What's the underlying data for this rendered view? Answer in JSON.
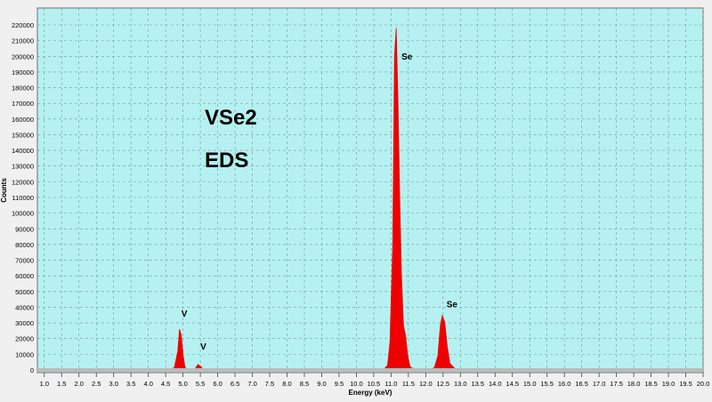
{
  "chart_data": {
    "type": "area",
    "title": "",
    "xlabel": "Energy (keV)",
    "ylabel": "Counts",
    "xlim": [
      0.8,
      20.0
    ],
    "ylim": [
      0,
      220000
    ],
    "x_ticks": [
      "1.0",
      "1.5",
      "2.0",
      "2.5",
      "3.0",
      "3.5",
      "4.0",
      "4.5",
      "5.0",
      "5.5",
      "6.0",
      "6.5",
      "7.0",
      "7.5",
      "8.0",
      "8.5",
      "9.0",
      "9.5",
      "10.0",
      "10.5",
      "11.0",
      "11.5",
      "12.0",
      "12.5",
      "13.0",
      "13.5",
      "14.0",
      "14.5",
      "15.0",
      "15.5",
      "16.0",
      "16.5",
      "17.0",
      "17.5",
      "18.0",
      "18.5",
      "19.0",
      "19.5",
      "20.0"
    ],
    "y_ticks": [
      "0",
      "10000",
      "20000",
      "30000",
      "40000",
      "50000",
      "60000",
      "70000",
      "80000",
      "90000",
      "100000",
      "110000",
      "120000",
      "130000",
      "140000",
      "150000",
      "160000",
      "170000",
      "180000",
      "190000",
      "200000",
      "210000",
      "220000"
    ],
    "grid": true,
    "colors": {
      "plot_bg": "#b6f1f1",
      "spectrum": "#ee0000",
      "grid": "#7a9a9a",
      "baseline": "#bbbbbb"
    },
    "series": [
      {
        "x": [
          0.8,
          1.3,
          1.35,
          1.4,
          1.45,
          1.5,
          4.6,
          4.75,
          4.85,
          4.9,
          4.95,
          5.0,
          5.05,
          5.1,
          5.25,
          5.35,
          5.43,
          5.5,
          5.57,
          5.65,
          7.9,
          7.98,
          8.05,
          8.12,
          8.2,
          8.55,
          8.6,
          8.65,
          10.6,
          10.8,
          10.9,
          10.97,
          11.05,
          11.1,
          11.15,
          11.2,
          11.25,
          11.3,
          11.36,
          11.42,
          11.48,
          11.55,
          11.7,
          12.1,
          12.25,
          12.35,
          12.42,
          12.48,
          12.55,
          12.62,
          12.7,
          12.85,
          13.0,
          15.6,
          15.65,
          15.7,
          20.0
        ],
        "y": [
          0,
          0,
          600,
          1000,
          600,
          0,
          0,
          1500,
          12000,
          26000,
          22000,
          10000,
          2500,
          0,
          0,
          800,
          3500,
          2500,
          700,
          0,
          0,
          600,
          900,
          600,
          0,
          0,
          700,
          0,
          0,
          600,
          3000,
          18000,
          80000,
          200000,
          218000,
          170000,
          110000,
          60000,
          28000,
          22000,
          9000,
          2000,
          0,
          0,
          1500,
          9000,
          28000,
          35000,
          30000,
          15000,
          4000,
          800,
          0,
          0,
          500,
          0,
          0
        ]
      }
    ],
    "annotations": [
      {
        "text": "Se",
        "x": 11.25,
        "y": 198000
      },
      {
        "text": "Se",
        "x": 12.55,
        "y": 40000
      },
      {
        "text": "V",
        "x": 4.9,
        "y": 34000
      },
      {
        "text": "V",
        "x": 5.45,
        "y": 13000
      }
    ],
    "overlay_text": [
      "VSe2",
      "EDS"
    ]
  }
}
